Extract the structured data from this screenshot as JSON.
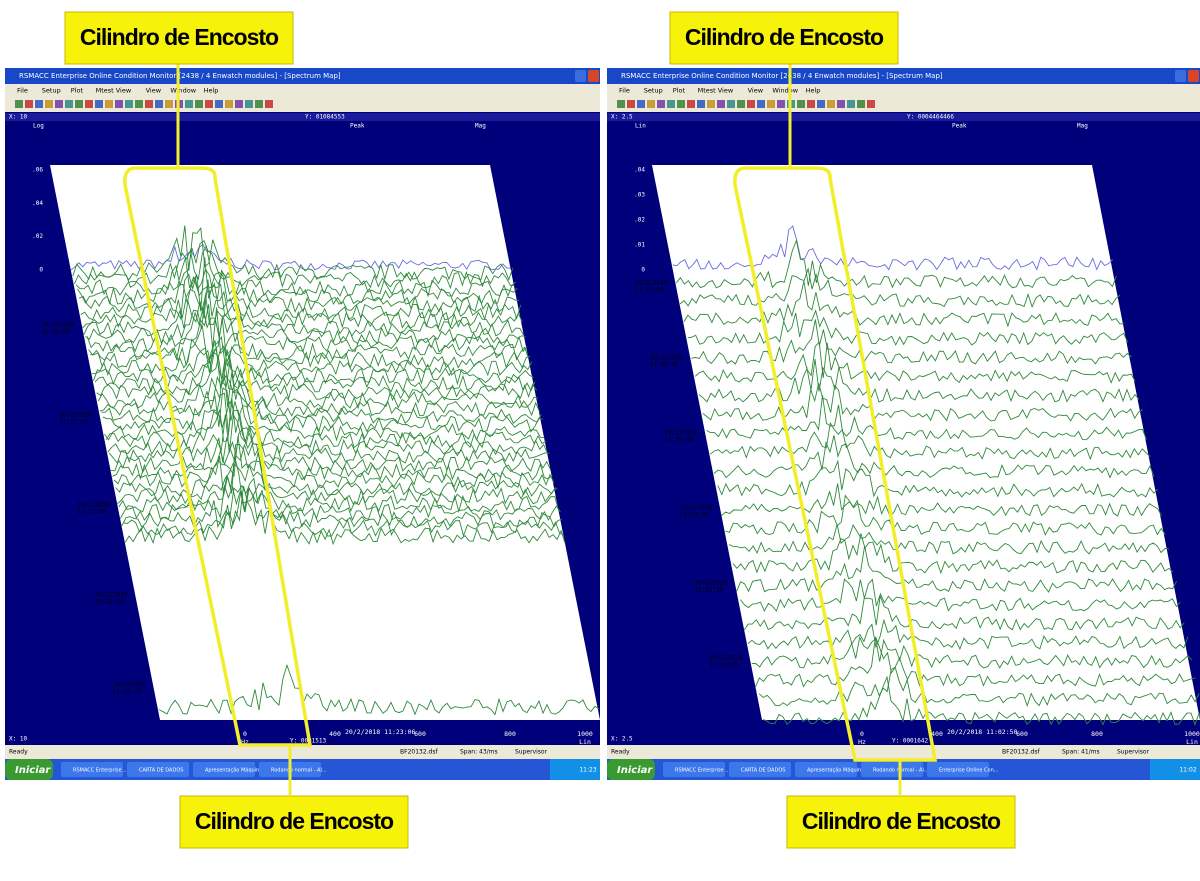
{
  "callouts": [
    "Cilindro de Encosto",
    "Cilindro de Encosto",
    "Cilindro de Encosto",
    "Cilindro de Encosto"
  ],
  "panels": [
    {
      "title": "RSMACC Enterprise Online Condition Monitor [2438 / 4 Enwatch modules] - [Spectrum Map]",
      "menu": [
        "File",
        "Setup",
        "Plot",
        "Mtest View",
        "View",
        "Window",
        "Help"
      ],
      "header": [
        "X: 10",
        "Y: 01084553"
      ],
      "plot_header": [
        "Log",
        "Peak",
        "Mag"
      ],
      "yticks": [
        ".06",
        ".04",
        ".02",
        "0"
      ],
      "timestamps": [
        [
          "20/2/2018",
          "11:23:00"
        ],
        [
          "20/2/2018",
          "11:22:50"
        ],
        [
          "20/2/2018",
          "11:22:40"
        ],
        [
          "20/2/2018",
          "11:22:30"
        ],
        [
          "20/2/2018",
          "11:22:20"
        ]
      ],
      "xticks": [
        "0",
        "400",
        "600",
        "800",
        "1000"
      ],
      "x_unit": "Hz",
      "x_scale": "Lin",
      "footer": [
        "X: 10",
        "Y: 0001513",
        "20/2/2018 11:23:06"
      ],
      "status": [
        "Ready",
        "BF20132.dsf",
        "Span: 43/ms",
        "Supervisor"
      ],
      "taskbar": {
        "start": "Iniciar",
        "items": [
          "RSMACC Enterprise ...",
          "CARTA DE DADOS",
          "Apresentação Máquin...",
          "Rodando normal - Al..."
        ],
        "clock": "11:23"
      }
    },
    {
      "title": "RSMACC Enterprise Online Condition Monitor [2438 / 4 Enwatch modules] - [Spectrum Map]",
      "menu": [
        "File",
        "Setup",
        "Plot",
        "Mtest View",
        "View",
        "Window",
        "Help"
      ],
      "header": [
        "X: 2.5",
        "Y: 0004464466"
      ],
      "plot_header": [
        "Lin",
        "Peak",
        "Mag"
      ],
      "yticks": [
        ".04",
        ".03",
        ".02",
        ".01",
        "0"
      ],
      "timestamps": [
        [
          "20/2/2018",
          "11:02:50"
        ],
        [
          "20/2/2018",
          "11:02:45"
        ],
        [
          "20/2/2018",
          "11:02:40"
        ],
        [
          "20/2/2018",
          "11:02:35"
        ],
        [
          "20/2/2018",
          "11:02:30"
        ],
        [
          "20/2/2018",
          "11:02:25"
        ]
      ],
      "xticks": [
        "0",
        "400",
        "600",
        "800",
        "1000"
      ],
      "x_unit": "Hz",
      "x_scale": "Lin",
      "footer": [
        "X: 2.5",
        "Y: 0001642",
        "20/2/2018 11:02:50"
      ],
      "status": [
        "Ready",
        "BF20132.dsf",
        "Span: 41/ms",
        "Supervisor"
      ],
      "taskbar": {
        "start": "Iniciar",
        "items": [
          "RSMACC Enterprise ...",
          "CARTA DE DADOS",
          "Apresentação Máquin...",
          "Rodando normal - Al...",
          "Enterprise Online Con..."
        ],
        "clock": "11:02"
      }
    }
  ]
}
